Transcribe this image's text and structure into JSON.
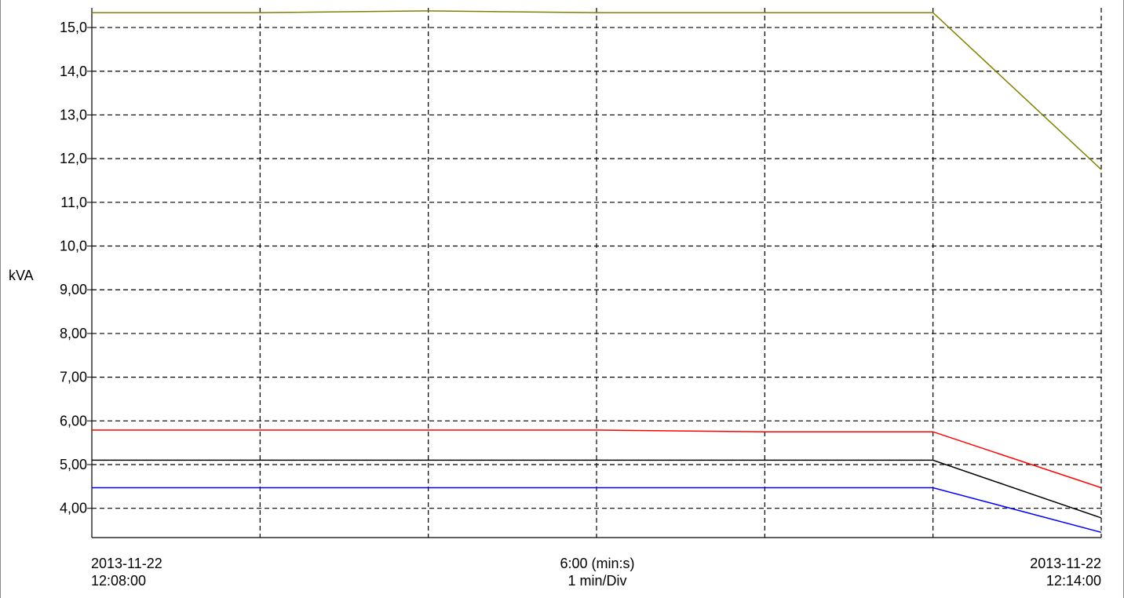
{
  "chart_data": {
    "type": "line",
    "ylabel": "kVA",
    "ylim": [
      3.33,
      15.45
    ],
    "yticks": [
      "15,0",
      "14,0",
      "13,0",
      "12,0",
      "11,0",
      "10,0",
      "9,00",
      "8,00",
      "7,00",
      "6,00",
      "5,00",
      "4,00"
    ],
    "ytick_values": [
      15,
      14,
      13,
      12,
      11,
      10,
      9,
      8,
      7,
      6,
      5,
      4
    ],
    "x_start": "2013-11-22 12:08:00",
    "x_end": "2013-11-22 12:14:00",
    "x_minutes": [
      0,
      1,
      2,
      3,
      4,
      5,
      6
    ],
    "x_axis": {
      "start_date": "2013-11-22",
      "start_time": "12:08:00",
      "end_date": "2013-11-22",
      "end_time": "12:14:00",
      "span_label": "6:00 (min:s)",
      "div_label": "1 min/Div"
    },
    "grid": true,
    "series": [
      {
        "color": "#808000",
        "values": [
          15.34,
          15.34,
          15.38,
          15.34,
          15.34,
          15.34,
          11.75
        ]
      },
      {
        "color": "#ff0000",
        "values": [
          5.79,
          5.79,
          5.79,
          5.79,
          5.75,
          5.75,
          4.47
        ]
      },
      {
        "color": "#000000",
        "values": [
          5.1,
          5.1,
          5.1,
          5.1,
          5.1,
          5.1,
          3.78
        ]
      },
      {
        "color": "#0000ff",
        "values": [
          4.47,
          4.47,
          4.47,
          4.47,
          4.47,
          4.47,
          3.45
        ]
      }
    ]
  }
}
